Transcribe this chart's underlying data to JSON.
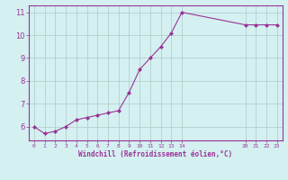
{
  "x": [
    0,
    1,
    2,
    3,
    4,
    5,
    6,
    7,
    8,
    9,
    10,
    11,
    12,
    13,
    14,
    20,
    21,
    22,
    23
  ],
  "y": [
    6.0,
    5.7,
    5.8,
    6.0,
    6.3,
    6.4,
    6.5,
    6.6,
    6.7,
    7.5,
    8.5,
    9.0,
    9.5,
    10.1,
    11.0,
    10.45,
    10.45,
    10.45,
    10.45
  ],
  "line_color": "#993399",
  "marker_color": "#993399",
  "bg_color": "#d4f0f0",
  "grid_color": "#b0c8c8",
  "xlabel": "Windchill (Refroidissement éolien,°C)",
  "xlabel_color": "#993399",
  "tick_color": "#993399",
  "axis_spine_color": "#993399",
  "ylabel_ticks": [
    6,
    7,
    8,
    9,
    10,
    11
  ],
  "xlabel_ticks": [
    0,
    1,
    2,
    3,
    4,
    5,
    6,
    7,
    8,
    9,
    10,
    11,
    12,
    13,
    14,
    20,
    21,
    22,
    23
  ],
  "ylim": [
    5.4,
    11.3
  ],
  "xlim": [
    -0.5,
    23.5
  ],
  "figsize": [
    3.2,
    2.0
  ],
  "dpi": 100
}
